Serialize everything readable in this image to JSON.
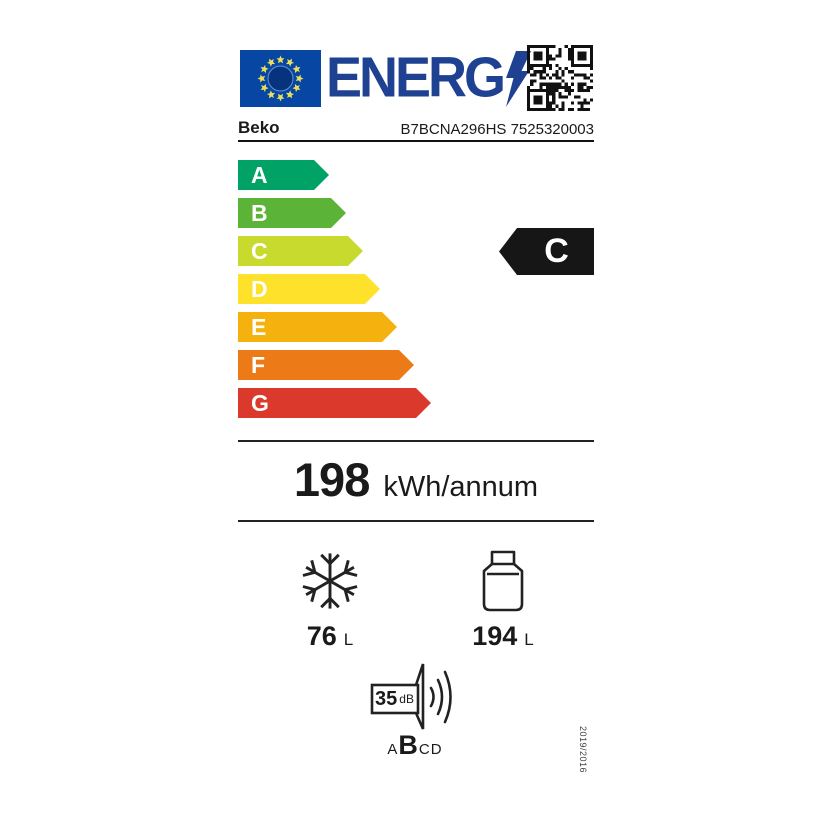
{
  "header": {
    "logo_text": "ENERG",
    "brand": "Beko",
    "model": "B7BCNA296HS 7525320003",
    "colors": {
      "eu_blue": "#1e4191",
      "flag_blue": "#0846a3",
      "flag_disc_blue": "#06337d",
      "star_yellow": "#e8e05a",
      "qr_black": "#111111"
    }
  },
  "efficiency_scale": {
    "classes": [
      {
        "label": "A",
        "color": "#00a265"
      },
      {
        "label": "B",
        "color": "#5bb437"
      },
      {
        "label": "C",
        "color": "#c8da2d"
      },
      {
        "label": "D",
        "color": "#fde12b"
      },
      {
        "label": "E",
        "color": "#f5b10d"
      },
      {
        "label": "F",
        "color": "#ec7a17"
      },
      {
        "label": "G",
        "color": "#da392b"
      }
    ],
    "rated_class": "C",
    "rated_color": "#161616"
  },
  "energy": {
    "value": "198",
    "unit": "kWh/annum"
  },
  "compartments": {
    "frozen": {
      "icon": "snowflake",
      "value": "76",
      "unit": "L"
    },
    "fresh": {
      "icon": "bottle",
      "value": "194",
      "unit": "L"
    }
  },
  "noise": {
    "value": "35",
    "unit": "dB",
    "scale_before": "A",
    "rated": "B",
    "scale_after": "CD"
  },
  "regulation": "2019/2016"
}
